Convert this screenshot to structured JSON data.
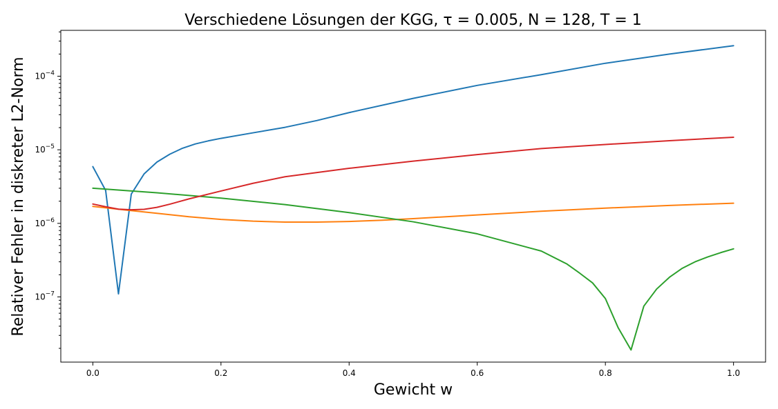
{
  "chart_data": {
    "type": "line",
    "title": "Verschiedene Lösungen der KGG, τ = 0.005, N = 128, T = 1",
    "xlabel": "Gewicht w",
    "ylabel": "Relativer Fehler in diskreter L2-Norm",
    "xlim": [
      -0.05,
      1.05
    ],
    "ylim": [
      1.3e-08,
      0.00042
    ],
    "yscale": "log",
    "grid": false,
    "x_ticks": [
      0.0,
      0.2,
      0.4,
      0.6,
      0.8,
      1.0
    ],
    "x_tick_labels": [
      "0.0",
      "0.2",
      "0.4",
      "0.6",
      "0.8",
      "1.0"
    ],
    "y_ticks": [
      1e-07,
      1e-06,
      1e-05,
      0.0001
    ],
    "y_tick_labels": [
      {
        "base": "10",
        "exp": "−7"
      },
      {
        "base": "10",
        "exp": "−6"
      },
      {
        "base": "10",
        "exp": "−5"
      },
      {
        "base": "10",
        "exp": "−4"
      }
    ],
    "series": [
      {
        "color": "#1f77b4",
        "x": [
          0.0,
          0.02,
          0.04,
          0.06,
          0.08,
          0.1,
          0.12,
          0.14,
          0.16,
          0.18,
          0.2,
          0.25,
          0.3,
          0.35,
          0.4,
          0.5,
          0.6,
          0.7,
          0.8,
          0.9,
          1.0
        ],
        "y": [
          5.9e-06,
          2.8e-06,
          1.1e-07,
          2.5e-06,
          4.7e-06,
          6.8e-06,
          8.7e-06,
          1.05e-05,
          1.2e-05,
          1.32e-05,
          1.43e-05,
          1.7e-05,
          2.02e-05,
          2.5e-05,
          3.2e-05,
          5e-05,
          7.5e-05,
          0.000105,
          0.00015,
          0.0002,
          0.00026
        ]
      },
      {
        "color": "#ff7f0e",
        "x": [
          0.0,
          0.05,
          0.1,
          0.15,
          0.2,
          0.25,
          0.3,
          0.35,
          0.4,
          0.45,
          0.5,
          0.6,
          0.7,
          0.8,
          0.9,
          1.0
        ],
        "y": [
          1.7e-06,
          1.52e-06,
          1.37e-06,
          1.23e-06,
          1.13e-06,
          1.07e-06,
          1.04e-06,
          1.04e-06,
          1.06e-06,
          1.1e-06,
          1.16e-06,
          1.3e-06,
          1.46e-06,
          1.61e-06,
          1.75e-06,
          1.88e-06
        ]
      },
      {
        "color": "#2ca02c",
        "x": [
          0.0,
          0.1,
          0.2,
          0.3,
          0.4,
          0.5,
          0.6,
          0.7,
          0.74,
          0.76,
          0.78,
          0.8,
          0.82,
          0.84,
          0.86,
          0.88,
          0.9,
          0.92,
          0.94,
          0.96,
          0.98,
          1.0
        ],
        "y": [
          3e-06,
          2.6e-06,
          2.2e-06,
          1.8e-06,
          1.4e-06,
          1.05e-06,
          7.2e-07,
          4.2e-07,
          2.8e-07,
          2.1e-07,
          1.55e-07,
          9.5e-08,
          3.8e-08,
          1.9e-08,
          7.5e-08,
          1.28e-07,
          1.85e-07,
          2.45e-07,
          3e-07,
          3.5e-07,
          4e-07,
          4.5e-07
        ]
      },
      {
        "color": "#d62728",
        "x": [
          0.0,
          0.02,
          0.04,
          0.06,
          0.08,
          0.1,
          0.12,
          0.15,
          0.2,
          0.25,
          0.3,
          0.4,
          0.5,
          0.6,
          0.7,
          0.8,
          0.9,
          1.0
        ],
        "y": [
          1.83e-06,
          1.68e-06,
          1.56e-06,
          1.53e-06,
          1.55e-06,
          1.65e-06,
          1.82e-06,
          2.15e-06,
          2.75e-06,
          3.5e-06,
          4.3e-06,
          5.6e-06,
          7e-06,
          8.6e-06,
          1.04e-05,
          1.18e-05,
          1.33e-05,
          1.48e-05
        ]
      }
    ]
  }
}
